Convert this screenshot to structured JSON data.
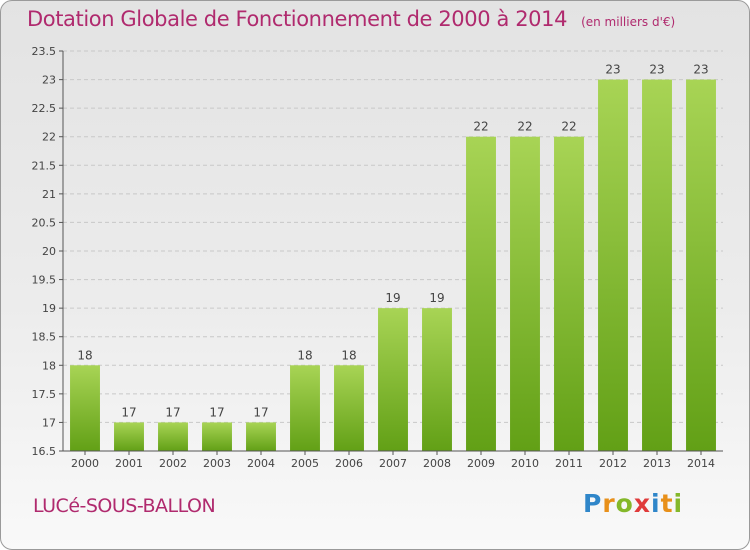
{
  "header": {
    "title": "Dotation Globale de Fonctionnement de 2000 à 2014",
    "unit": "(en milliers d'€)"
  },
  "footer": {
    "town": "LUCé-SOUS-BALLON",
    "logo": "Proxiti"
  },
  "chart_data": {
    "type": "bar",
    "title": "Dotation Globale de Fonctionnement de 2000 à 2014",
    "subtitle": "(en milliers d'€)",
    "xlabel": "",
    "ylabel": "",
    "categories": [
      "2000",
      "2001",
      "2002",
      "2003",
      "2004",
      "2005",
      "2006",
      "2007",
      "2008",
      "2009",
      "2010",
      "2011",
      "2012",
      "2013",
      "2014"
    ],
    "values": [
      18,
      17,
      17,
      17,
      17,
      18,
      18,
      19,
      19,
      22,
      22,
      22,
      23,
      23,
      23
    ],
    "labels": [
      "18",
      "17",
      "17",
      "17",
      "17",
      "18",
      "18",
      "19",
      "19",
      "22",
      "22",
      "22",
      "23",
      "23",
      "23"
    ],
    "ylim": [
      16.5,
      23.5
    ],
    "yticks": [
      16.5,
      17,
      17.5,
      18,
      18.5,
      19,
      19.5,
      20,
      20.5,
      21,
      21.5,
      22,
      22.5,
      23,
      23.5
    ],
    "ytick_labels": [
      "16.5",
      "17",
      "17.5",
      "18",
      "18.5",
      "19",
      "19.5",
      "20",
      "20.5",
      "21",
      "21.5",
      "22",
      "22.5",
      "23",
      "23.5"
    ],
    "grid": true,
    "colors": {
      "bar_top": "#a8d455",
      "bar_bottom": "#62a016",
      "grid": "#c8c8c8",
      "axis": "#555555",
      "text": "#444444"
    }
  }
}
